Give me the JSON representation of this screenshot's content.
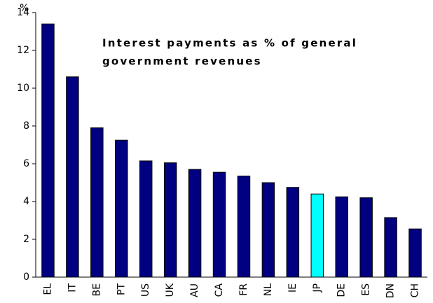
{
  "chart_data": {
    "type": "bar",
    "title": [
      "Interest payments as % of general",
      "government revenues"
    ],
    "ylabel": "%",
    "categories": [
      "EL",
      "IT",
      "BE",
      "PT",
      "US",
      "UK",
      "AU",
      "CA",
      "FR",
      "NL",
      "IE",
      "JP",
      "DE",
      "ES",
      "DN",
      "CH"
    ],
    "values": [
      13.4,
      10.6,
      7.9,
      7.25,
      6.15,
      6.05,
      5.7,
      5.55,
      5.35,
      5.0,
      4.75,
      4.4,
      4.25,
      4.2,
      3.15,
      2.55
    ],
    "colors": [
      "#000080",
      "#000080",
      "#000080",
      "#000080",
      "#000080",
      "#000080",
      "#000080",
      "#000080",
      "#000080",
      "#000080",
      "#000080",
      "#00ffff",
      "#000080",
      "#000080",
      "#000080",
      "#000080"
    ],
    "ylim": [
      0,
      14
    ],
    "yticks": [
      0,
      2,
      4,
      6,
      8,
      10,
      12,
      14
    ],
    "grid": false
  }
}
